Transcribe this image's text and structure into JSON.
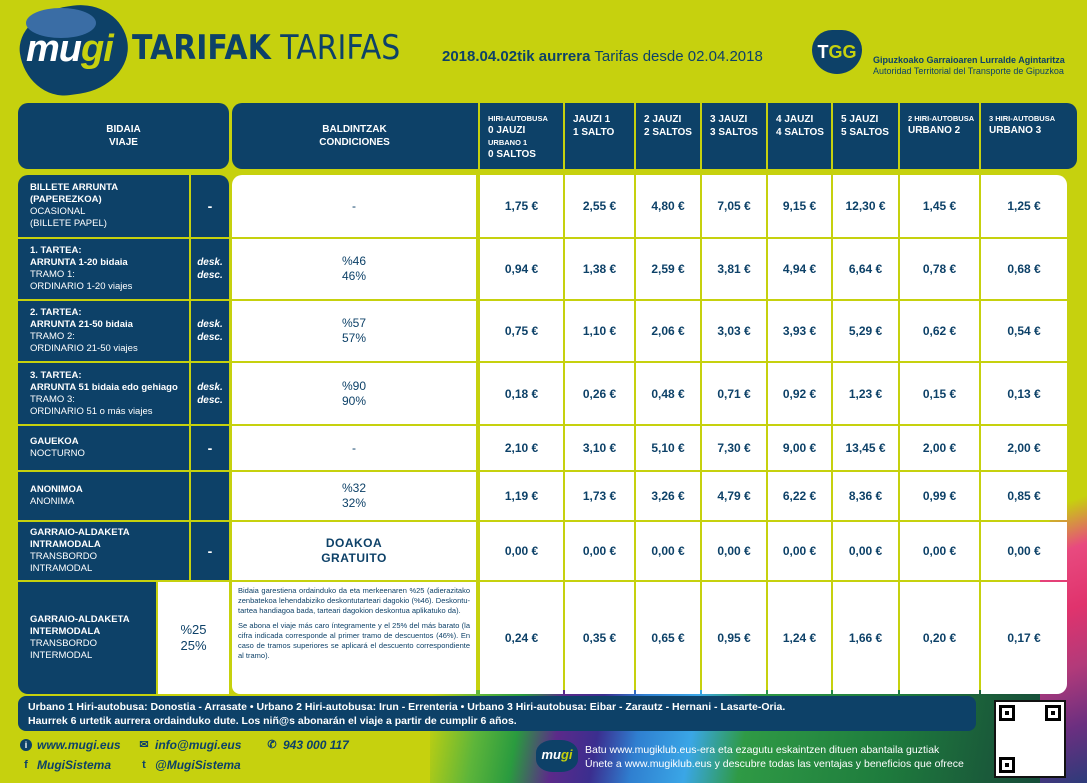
{
  "header": {
    "logo_text_a": "mu",
    "logo_text_b": "gi",
    "title_bold": "TARIFAK",
    "title_regular": "TARIFAS",
    "date_bold": "2018.04.02tik aurrera",
    "date_regular": "Tarifas desde 02.04.2018",
    "authority_logo": {
      "a": "T",
      "b": "G",
      "c": "G"
    },
    "authority_line1": "Gipuzkoako Garraioaren Lurralde Agintaritza",
    "authority_line2": "Autoridad Territorial del Transporte de Gipuzkoa"
  },
  "table": {
    "headers": {
      "viaje": [
        "BIDAIA",
        "VIAJE"
      ],
      "condiciones": [
        "BALDINTZAK",
        "CONDICIONES"
      ],
      "columns": [
        {
          "small1": "HIRI-AUTOBUSA",
          "line1": "0 JAUZI",
          "small2": "URBANO 1",
          "line2": "0 SALTOS"
        },
        {
          "line1": "JAUZI 1",
          "line2": "1 SALTO"
        },
        {
          "line1": "2 JAUZI",
          "line2": "2 SALTOS"
        },
        {
          "line1": "3 JAUZI",
          "line2": "3 SALTOS"
        },
        {
          "line1": "4 JAUZI",
          "line2": "4 SALTOS"
        },
        {
          "line1": "5 JAUZI",
          "line2": "5 SALTOS"
        },
        {
          "small1": "2 HIRI-AUTOBUSA",
          "line1": "URBANO 2"
        },
        {
          "small1": "3 HIRI-AUTOBUSA",
          "line1": "URBANO 3"
        }
      ]
    },
    "rows": [
      {
        "label": [
          "BILLETE ARRUNTA",
          "(PAPEREZKOA)",
          "OCASIONAL",
          "(BILLETE PAPEL)"
        ],
        "bold_lines": 2,
        "mid": [
          "-"
        ],
        "cond": [
          "-"
        ],
        "prices": [
          "1,75 €",
          "2,55 €",
          "4,80 €",
          "7,05 €",
          "9,15 €",
          "12,30 €",
          "1,45 €",
          "1,25 €"
        ]
      },
      {
        "label": [
          "1. TARTEA:",
          "ARRUNTA 1-20 bidaia",
          "TRAMO 1:",
          "ORDINARIO 1-20 viajes"
        ],
        "bold_lines": 2,
        "mid": [
          "desk.",
          "desc."
        ],
        "cond": [
          "%46",
          "46%"
        ],
        "prices": [
          "0,94 €",
          "1,38 €",
          "2,59 €",
          "3,81 €",
          "4,94 €",
          "6,64 €",
          "0,78 €",
          "0,68 €"
        ]
      },
      {
        "label": [
          "2. TARTEA:",
          "ARRUNTA 21-50 bidaia",
          "TRAMO 2:",
          "ORDINARIO 21-50 viajes"
        ],
        "bold_lines": 2,
        "mid": [
          "desk.",
          "desc."
        ],
        "cond": [
          "%57",
          "57%"
        ],
        "prices": [
          "0,75 €",
          "1,10 €",
          "2,06 €",
          "3,03 €",
          "3,93 €",
          "5,29 €",
          "0,62 €",
          "0,54 €"
        ]
      },
      {
        "label": [
          "3. TARTEA:",
          "ARRUNTA 51 bidaia edo gehiago",
          "TRAMO 3:",
          "ORDINARIO 51 o más viajes"
        ],
        "bold_lines": 2,
        "mid": [
          "desk.",
          "desc."
        ],
        "cond": [
          "%90",
          "90%"
        ],
        "prices": [
          "0,18 €",
          "0,26 €",
          "0,48 €",
          "0,71 €",
          "0,92 €",
          "1,23 €",
          "0,15 €",
          "0,13 €"
        ]
      },
      {
        "label": [
          "GAUEKOA",
          "NOCTURNO"
        ],
        "bold_lines": 1,
        "mid": [
          "-"
        ],
        "cond": [
          "-"
        ],
        "prices": [
          "2,10 €",
          "3,10 €",
          "5,10 €",
          "7,30 €",
          "9,00 €",
          "13,45 €",
          "2,00 €",
          "2,00 €"
        ]
      },
      {
        "label": [
          "ANONIMOA",
          "ANONIMA"
        ],
        "bold_lines": 1,
        "mid": [],
        "cond": [
          "%32",
          "32%"
        ],
        "prices": [
          "1,19 €",
          "1,73 €",
          "3,26 €",
          "4,79 €",
          "6,22 €",
          "8,36 €",
          "0,99 €",
          "0,85 €"
        ]
      },
      {
        "label": [
          "GARRAIO-ALDAKETA",
          "INTRAMODALA",
          "TRANSBORDO",
          "INTRAMODAL"
        ],
        "bold_lines": 2,
        "mid": [
          "-"
        ],
        "cond": [
          "DOAKOA",
          "GRATUITO"
        ],
        "prices": [
          "0,00 €",
          "0,00 €",
          "0,00 €",
          "0,00 €",
          "0,00 €",
          "0,00 €",
          "0,00 €",
          "0,00 €"
        ]
      },
      {
        "label": [
          "GARRAIO-ALDAKETA",
          "INTERMODALA",
          "TRANSBORDO",
          "INTERMODAL"
        ],
        "bold_lines": 2,
        "pct": [
          "%25",
          "25%"
        ],
        "cond_text": [
          "Bidaia garestiena ordainduko da eta merkeenaren %25 (adierazitako zenbatekoa lehendabiziko deskontutarteari dagokio (%46). Deskontu-tartea handiagoa bada, tarteari dagokion deskontua aplikatuko da).",
          "Se abona el viaje más caro íntegramente y el 25% del más barato (la cifra indicada corresponde al primer tramo de descuentos (46%). En caso de tramos superiores se aplicará el descuento correspondiente al tramo)."
        ],
        "prices": [
          "0,24 €",
          "0,35 €",
          "0,65 €",
          "0,95 €",
          "1,24 €",
          "1,66 €",
          "0,20 €",
          "0,17 €"
        ]
      }
    ]
  },
  "footer": {
    "note_line1": "Urbano 1 Hiri-autobusa: Donostia - Arrasate • Urbano 2 Hiri-autobusa: Irun - Errenteria • Urbano 3 Hiri-autobusa: Eibar - Zarautz - Hernani - Lasarte-Oria.",
    "note_line2": "Haurrek 6 urtetik aurrera ordainduko dute. Los niñ@s abonarán el viaje a partir de cumplir 6 años.",
    "website": "www.mugi.eus",
    "email": "info@mugi.eus",
    "phone": "943 000 117",
    "facebook": "MugiSistema",
    "twitter": "@MugiSistema",
    "klub_logo_a": "mu",
    "klub_logo_b": "gi",
    "klub_line1": "Batu www.mugiklub.eus-era eta ezagutu eskaintzen dituen abantaila guztiak",
    "klub_line2": "Únete a www.mugiklub.eus y descubre todas las ventajas y beneficios que ofrece",
    "icons": {
      "website": "info-icon",
      "email": "envelope-icon",
      "phone": "phone-icon",
      "facebook": "facebook-icon",
      "twitter": "twitter-icon",
      "qr": "qr-code"
    }
  },
  "colors": {
    "background": "#c6d10e",
    "navy": "#0d4168",
    "white": "#ffffff"
  }
}
